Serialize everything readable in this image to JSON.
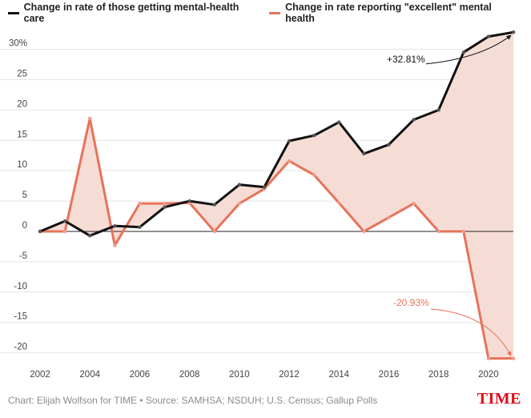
{
  "chart_data": {
    "type": "line",
    "x": [
      2002,
      2003,
      2004,
      2005,
      2006,
      2007,
      2008,
      2009,
      2010,
      2011,
      2012,
      2013,
      2014,
      2015,
      2016,
      2017,
      2018,
      2019,
      2020,
      2021
    ],
    "series": [
      {
        "name": "Change in rate of those getting mental-health care",
        "color": "#111111",
        "values": [
          0,
          1.7,
          -0.7,
          0.9,
          0.7,
          4.0,
          5.0,
          4.4,
          7.7,
          7.3,
          14.9,
          15.8,
          18.0,
          12.8,
          14.3,
          18.4,
          20.0,
          29.5,
          32.1,
          32.81
        ]
      },
      {
        "name": "Change in rate reporting \"excellent\" mental health",
        "color": "#e8725a",
        "values": [
          0,
          0,
          18.6,
          -2.3,
          4.6,
          4.6,
          4.7,
          0,
          4.6,
          7.0,
          11.6,
          9.3,
          4.7,
          0,
          2.3,
          4.6,
          0,
          0,
          -20.93,
          -20.93
        ]
      }
    ],
    "fill_between_color": "#f5ddd5",
    "ylim": [
      -21.5,
      33.5
    ],
    "yticks": [
      -20,
      -15,
      -10,
      -5,
      0,
      5,
      10,
      15,
      20,
      25,
      30
    ],
    "ytick_labels": [
      "-20",
      "-15",
      "-10",
      "-5",
      "0",
      "5",
      "10",
      "15",
      "20",
      "25",
      "30%"
    ],
    "xticks": [
      2002,
      2004,
      2006,
      2008,
      2010,
      2012,
      2014,
      2016,
      2018,
      2020
    ],
    "xtick_labels": [
      "2002",
      "2004",
      "2006",
      "2008",
      "2010",
      "2012",
      "2014",
      "2016",
      "2018",
      "2020"
    ],
    "xlim": [
      2002,
      2021
    ],
    "grid": true,
    "legend_placement": "top-left",
    "annotations": [
      {
        "text": "+32.81%",
        "color": "#111111"
      },
      {
        "text": "-20.93%",
        "color": "#e8725a"
      }
    ]
  },
  "footer": {
    "source": "Chart: Elijah Wolfson for TIME • Source: SAMHSA; NSDUH; U.S. Census; Gallup Polls",
    "logo": "TIME"
  }
}
